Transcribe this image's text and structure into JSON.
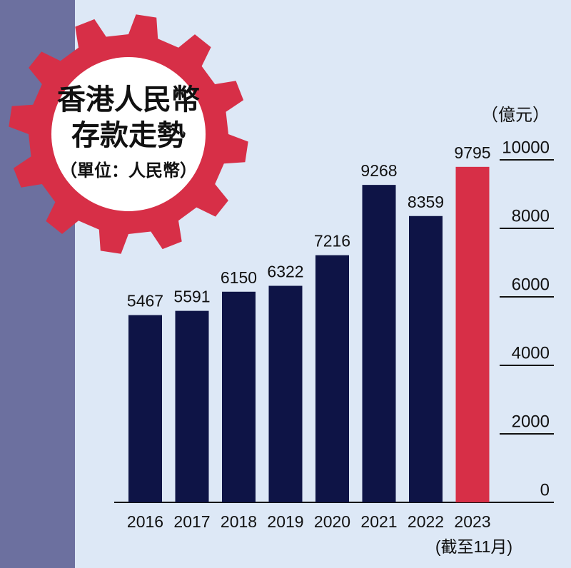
{
  "chart_data": {
    "type": "bar",
    "title": [
      "香港人民幣",
      "存款走勢"
    ],
    "subtitle": "（單位：人民幣）",
    "y_axis_label": "（億元）",
    "annotation": "(截至11月)",
    "categories": [
      "2016",
      "2017",
      "2018",
      "2019",
      "2020",
      "2021",
      "2022",
      "2023"
    ],
    "values": [
      5467,
      5591,
      6150,
      6322,
      7216,
      9268,
      8359,
      9795
    ],
    "colors": [
      "#0e1446",
      "#0e1446",
      "#0e1446",
      "#0e1446",
      "#0e1446",
      "#0e1446",
      "#0e1446",
      "#d72f47"
    ],
    "ylim": [
      0,
      10000
    ],
    "yticks": [
      0,
      2000,
      4000,
      6000,
      8000,
      10000
    ],
    "grid": false
  }
}
